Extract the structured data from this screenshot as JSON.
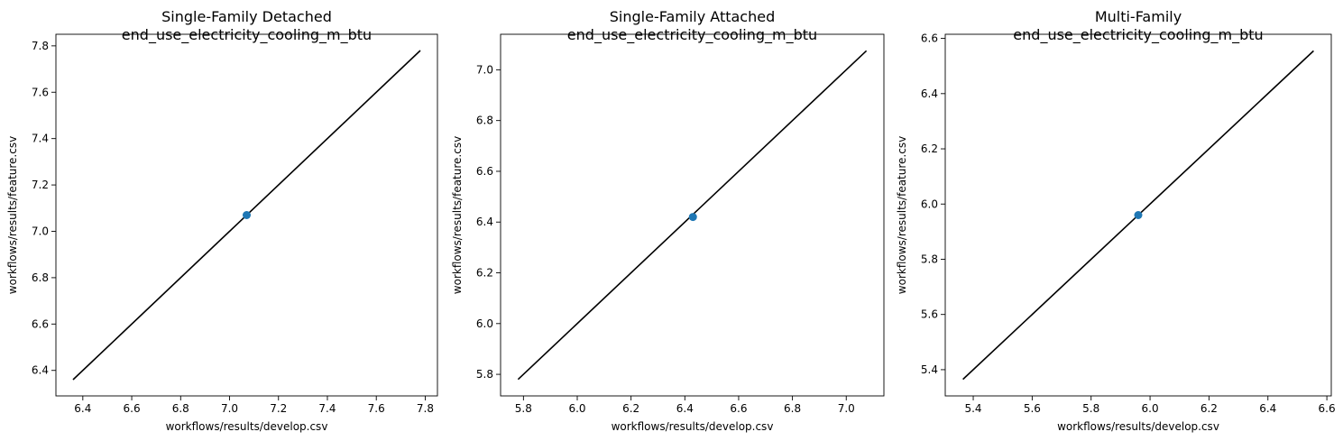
{
  "chart_data": [
    {
      "type": "scatter",
      "title": "Single-Family Detached\nend_use_electricity_cooling_m_btu",
      "xlabel": "workflows/results/develop.csv",
      "ylabel": "workflows/results/feature.csv",
      "xlim": [
        6.29,
        7.85
      ],
      "ylim": [
        6.29,
        7.85
      ],
      "xticks": [
        "6.4",
        "6.6",
        "6.8",
        "7.0",
        "7.2",
        "7.4",
        "7.6",
        "7.8"
      ],
      "yticks": [
        "6.4",
        "6.6",
        "6.8",
        "7.0",
        "7.2",
        "7.4",
        "7.6",
        "7.8"
      ],
      "points": [
        {
          "x": 7.07,
          "y": 7.07
        }
      ],
      "reference_line": {
        "x": [
          6.36,
          7.78
        ],
        "y": [
          6.36,
          7.78
        ],
        "color": "#000000"
      },
      "point_color": "#1f77b4",
      "grid": false
    },
    {
      "type": "scatter",
      "title": "Single-Family Attached\nend_use_electricity_cooling_m_btu",
      "xlabel": "workflows/results/develop.csv",
      "ylabel": "workflows/results/feature.csv",
      "xlim": [
        5.715,
        7.14
      ],
      "ylim": [
        5.715,
        7.14
      ],
      "xticks": [
        "5.8",
        "6.0",
        "6.2",
        "6.4",
        "6.6",
        "6.8",
        "7.0"
      ],
      "yticks": [
        "5.8",
        "6.0",
        "6.2",
        "6.4",
        "6.6",
        "6.8",
        "7.0"
      ],
      "points": [
        {
          "x": 6.43,
          "y": 6.42
        }
      ],
      "reference_line": {
        "x": [
          5.78,
          7.075
        ],
        "y": [
          5.78,
          7.075
        ],
        "color": "#000000"
      },
      "point_color": "#1f77b4",
      "grid": false
    },
    {
      "type": "scatter",
      "title": "Multi-Family\nend_use_electricity_cooling_m_btu",
      "xlabel": "workflows/results/develop.csv",
      "ylabel": "workflows/results/feature.csv",
      "xlim": [
        5.305,
        6.615
      ],
      "ylim": [
        5.305,
        6.615
      ],
      "xticks": [
        "5.4",
        "5.6",
        "5.8",
        "6.0",
        "6.2",
        "6.4",
        "6.6"
      ],
      "yticks": [
        "5.4",
        "5.6",
        "5.8",
        "6.0",
        "6.2",
        "6.4",
        "6.6"
      ],
      "points": [
        {
          "x": 5.96,
          "y": 5.96
        }
      ],
      "reference_line": {
        "x": [
          5.365,
          6.555
        ],
        "y": [
          5.365,
          6.555
        ],
        "color": "#000000"
      },
      "point_color": "#1f77b4",
      "grid": false
    }
  ]
}
